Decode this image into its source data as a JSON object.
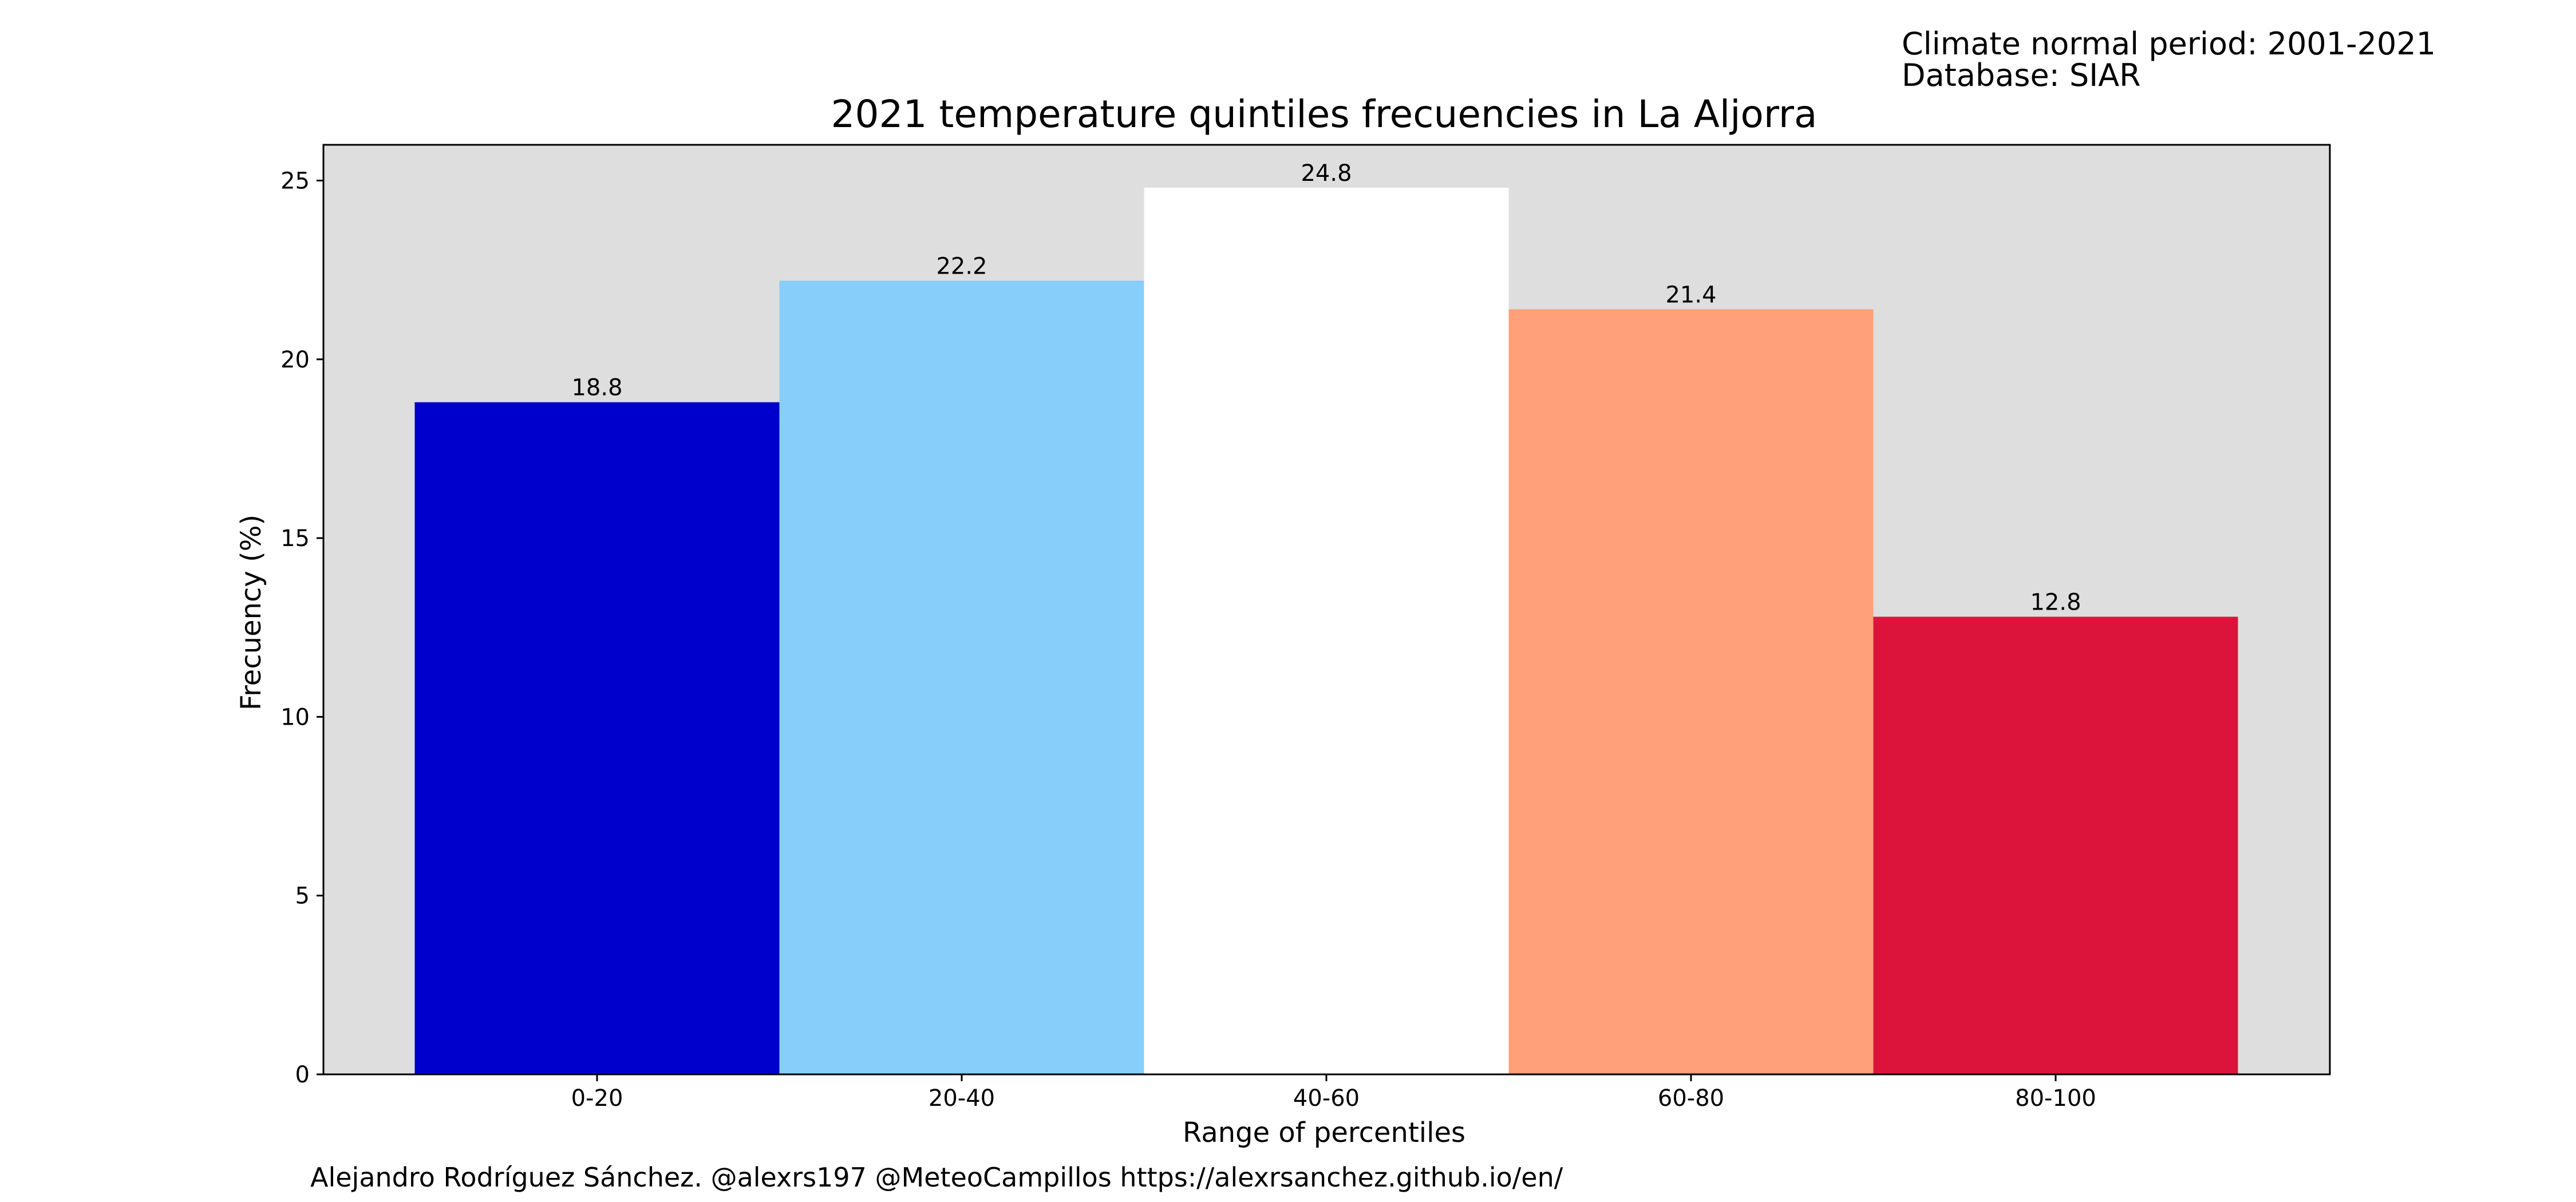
{
  "header": {
    "period": "Climate normal period: 2001-2021",
    "database": "Database: SIAR"
  },
  "credits": "Alejandro Rodríguez Sánchez. @alexrs197 @MeteoCampillos   https://alexrsanchez.github.io/en/",
  "chart_data": {
    "type": "bar",
    "title": "2021 temperature quintiles frecuencies in La Aljorra",
    "xlabel": "Range of percentiles",
    "ylabel": "Frecuency (%)",
    "categories": [
      "0-20",
      "20-40",
      "40-60",
      "60-80",
      "80-100"
    ],
    "values": [
      18.8,
      22.2,
      24.8,
      21.4,
      12.8
    ],
    "value_labels": [
      "18.8",
      "22.2",
      "24.8",
      "21.4",
      "12.8"
    ],
    "bar_colors": [
      "#0000cd",
      "#87cefa",
      "#ffffff",
      "#ffa07a",
      "#dc143c"
    ],
    "ylim": [
      0,
      26
    ],
    "yticks": [
      0,
      5,
      10,
      15,
      20,
      25
    ],
    "plot_background": "#dedede",
    "grid": false,
    "legend": "none"
  }
}
